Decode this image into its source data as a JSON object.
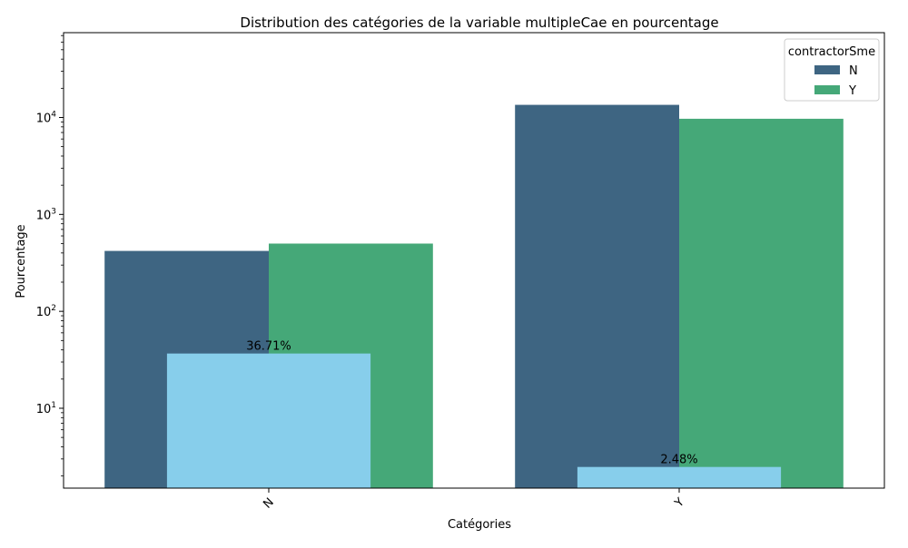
{
  "chart_data": {
    "type": "bar",
    "title": "Distribution des catégories de la variable multipleCae en pourcentage",
    "xlabel": "Catégories",
    "ylabel": "Pourcentage",
    "yscale": "log",
    "ylim": [
      1.5,
      75000
    ],
    "grid": false,
    "categories": [
      "N",
      "Y"
    ],
    "legend": {
      "title": "contractorSme",
      "placement": "top-right"
    },
    "series": [
      {
        "name": "N",
        "color": "#3e6582",
        "values": [
          420,
          13500
        ]
      },
      {
        "name": "Y",
        "color": "#45a878",
        "values": [
          500,
          9700
        ]
      }
    ],
    "percentage_bars": {
      "color": "#87ceeb",
      "values": [
        36.71,
        2.48
      ],
      "labels": [
        "36.71%",
        "2.48%"
      ]
    },
    "y_ticks": [
      {
        "value": 10,
        "base": "10",
        "exp": "1"
      },
      {
        "value": 100,
        "base": "10",
        "exp": "2"
      },
      {
        "value": 1000,
        "base": "10",
        "exp": "3"
      },
      {
        "value": 10000,
        "base": "10",
        "exp": "4"
      }
    ]
  }
}
